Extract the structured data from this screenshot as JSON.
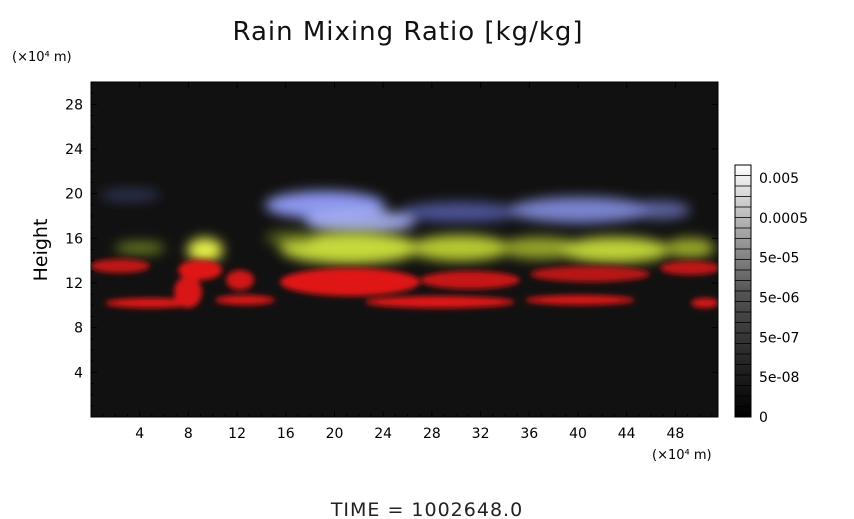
{
  "chart_data": {
    "type": "heatmap",
    "title": "Rain Mixing Ratio [kg/kg]",
    "ylabel": "Height",
    "x_unit_label": "(×10⁴ m)",
    "y_unit_label": "(×10⁴ m)",
    "xlim": [
      0,
      51.5
    ],
    "ylim": [
      0,
      30
    ],
    "x_ticks": [
      4,
      8,
      12,
      16,
      20,
      24,
      28,
      32,
      36,
      40,
      44,
      48
    ],
    "y_ticks": [
      4,
      8,
      12,
      16,
      20,
      24,
      28
    ],
    "grid": false,
    "background_color": "#111111",
    "colorbar": {
      "placement": "right",
      "labels": [
        "0.005",
        "0.0005",
        "5e-05",
        "5e-06",
        "5e-07",
        "5e-08",
        "0"
      ],
      "gradient": [
        "#000000",
        "#ffffff"
      ]
    },
    "regions": [
      {
        "name": "blue",
        "color": "#8c96ee",
        "x_range": [
          14,
          48
        ],
        "y_range": [
          17.5,
          20.5
        ]
      },
      {
        "name": "yellow-green",
        "color": "#c6d83a",
        "x_range": [
          0,
          51
        ],
        "y_range": [
          13,
          17
        ]
      },
      {
        "name": "red",
        "color": "#e01818",
        "x_range": [
          0,
          51.5
        ],
        "y_range": [
          9.5,
          14
        ]
      }
    ],
    "footer": "TIME  =  1002648.0"
  }
}
